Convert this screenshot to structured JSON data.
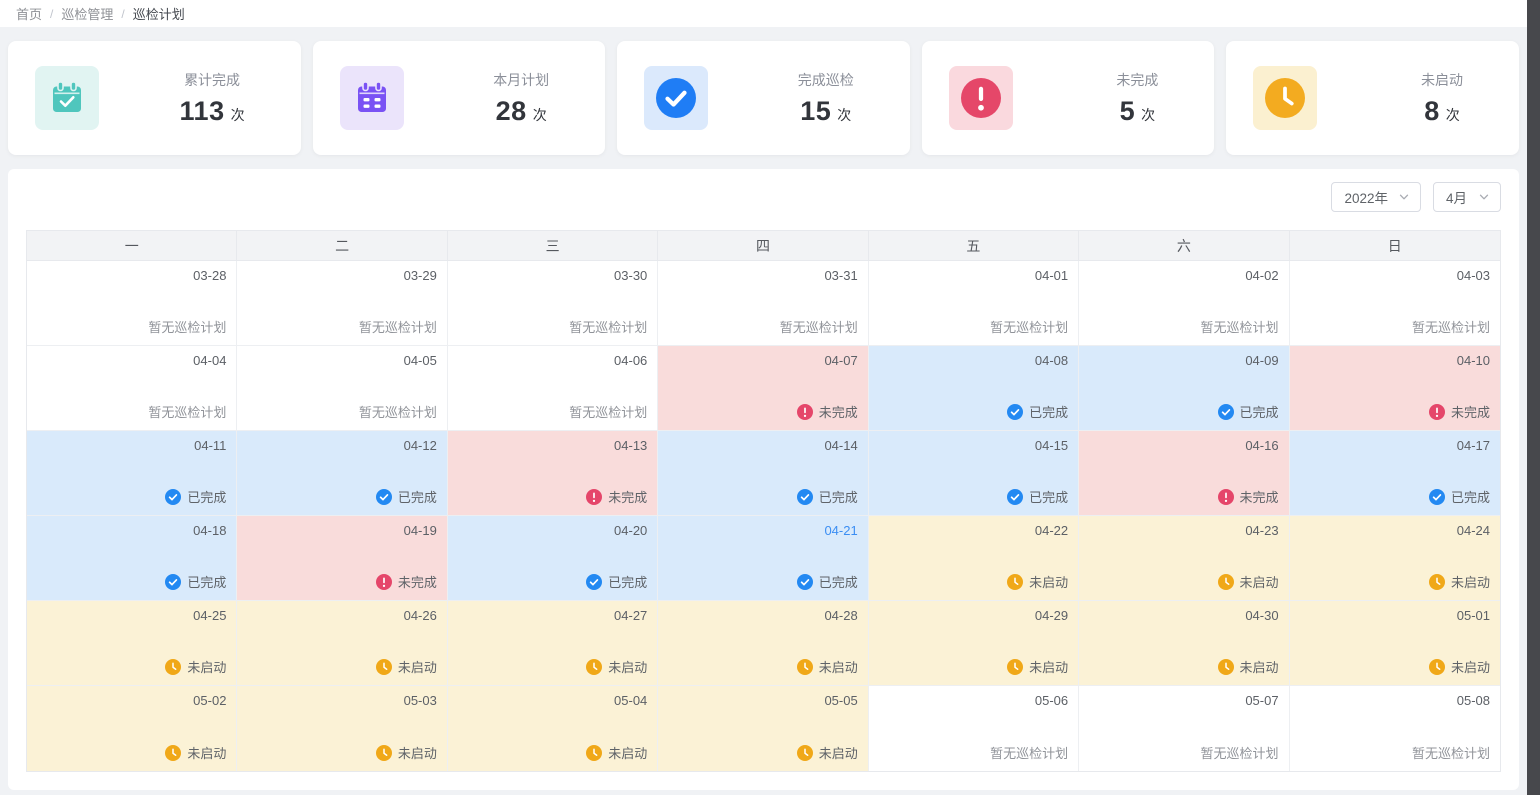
{
  "breadcrumb": {
    "separator": "/",
    "items": [
      {
        "label": "首页"
      },
      {
        "label": "巡检管理"
      },
      {
        "label": "巡检计划"
      }
    ]
  },
  "stats": [
    {
      "key": "total-complete",
      "label": "累计完成",
      "value": "113",
      "unit": "次",
      "icon": "calendar-check-icon",
      "icon_color": "#4fc6bd",
      "icon_bg": "#e1f4f2"
    },
    {
      "key": "month-plan",
      "label": "本月计划",
      "value": "28",
      "unit": "次",
      "icon": "calendar-grid-icon",
      "icon_color": "#7a52f4",
      "icon_bg": "#ebe4fb"
    },
    {
      "key": "done-count",
      "label": "完成巡检",
      "value": "15",
      "unit": "次",
      "icon": "check-circle-icon",
      "icon_color": "#1f7df5",
      "icon_bg": "#dbe9fc"
    },
    {
      "key": "undone-count",
      "label": "未完成",
      "value": "5",
      "unit": "次",
      "icon": "exclamation-circle-icon",
      "icon_color": "#e54769",
      "icon_bg": "#fad9de"
    },
    {
      "key": "notstart-count",
      "label": "未启动",
      "value": "8",
      "unit": "次",
      "icon": "clock-icon",
      "icon_color": "#f3ab20",
      "icon_bg": "#fbf0d0"
    }
  ],
  "filters": {
    "year": "2022年",
    "month": "4月"
  },
  "calendar": {
    "weekdays": [
      "一",
      "二",
      "三",
      "四",
      "五",
      "六",
      "日"
    ],
    "today": "04-21",
    "today_color": "#3b8ef3",
    "statuses": {
      "none": {
        "label": "暂无巡检计划",
        "bg": "#ffffff",
        "text_color": "#909399",
        "icon": null
      },
      "done": {
        "label": "已完成",
        "bg": "#d9eafb",
        "text_color": "#5f6368",
        "icon": "check-circle-icon",
        "icon_color": "#2389f2"
      },
      "undone": {
        "label": "未完成",
        "bg": "#f9dcdb",
        "text_color": "#5f6368",
        "icon": "exclamation-circle-icon",
        "icon_color": "#e5466a"
      },
      "notstart": {
        "label": "未启动",
        "bg": "#fbf2d6",
        "text_color": "#5f6368",
        "icon": "clock-icon",
        "icon_color": "#f0a818"
      }
    },
    "weeks": [
      [
        {
          "date": "03-28",
          "status": "none"
        },
        {
          "date": "03-29",
          "status": "none"
        },
        {
          "date": "03-30",
          "status": "none"
        },
        {
          "date": "03-31",
          "status": "none"
        },
        {
          "date": "04-01",
          "status": "none"
        },
        {
          "date": "04-02",
          "status": "none"
        },
        {
          "date": "04-03",
          "status": "none"
        }
      ],
      [
        {
          "date": "04-04",
          "status": "none"
        },
        {
          "date": "04-05",
          "status": "none"
        },
        {
          "date": "04-06",
          "status": "none"
        },
        {
          "date": "04-07",
          "status": "undone"
        },
        {
          "date": "04-08",
          "status": "done"
        },
        {
          "date": "04-09",
          "status": "done"
        },
        {
          "date": "04-10",
          "status": "undone"
        }
      ],
      [
        {
          "date": "04-11",
          "status": "done"
        },
        {
          "date": "04-12",
          "status": "done"
        },
        {
          "date": "04-13",
          "status": "undone"
        },
        {
          "date": "04-14",
          "status": "done"
        },
        {
          "date": "04-15",
          "status": "done"
        },
        {
          "date": "04-16",
          "status": "undone"
        },
        {
          "date": "04-17",
          "status": "done"
        }
      ],
      [
        {
          "date": "04-18",
          "status": "done"
        },
        {
          "date": "04-19",
          "status": "undone"
        },
        {
          "date": "04-20",
          "status": "done"
        },
        {
          "date": "04-21",
          "status": "done"
        },
        {
          "date": "04-22",
          "status": "notstart"
        },
        {
          "date": "04-23",
          "status": "notstart"
        },
        {
          "date": "04-24",
          "status": "notstart"
        }
      ],
      [
        {
          "date": "04-25",
          "status": "notstart"
        },
        {
          "date": "04-26",
          "status": "notstart"
        },
        {
          "date": "04-27",
          "status": "notstart"
        },
        {
          "date": "04-28",
          "status": "notstart"
        },
        {
          "date": "04-29",
          "status": "notstart"
        },
        {
          "date": "04-30",
          "status": "notstart"
        },
        {
          "date": "05-01",
          "status": "notstart"
        }
      ],
      [
        {
          "date": "05-02",
          "status": "notstart"
        },
        {
          "date": "05-03",
          "status": "notstart"
        },
        {
          "date": "05-04",
          "status": "notstart"
        },
        {
          "date": "05-05",
          "status": "notstart"
        },
        {
          "date": "05-06",
          "status": "none"
        },
        {
          "date": "05-07",
          "status": "none"
        },
        {
          "date": "05-08",
          "status": "none"
        }
      ]
    ]
  }
}
